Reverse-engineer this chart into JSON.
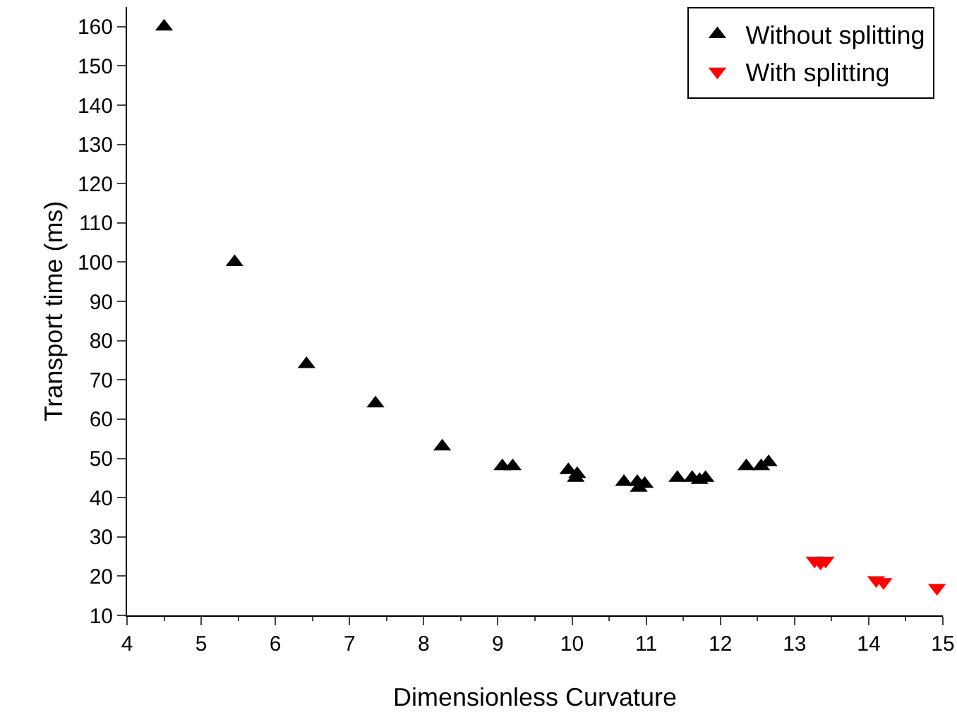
{
  "chart_data": {
    "type": "scatter",
    "xlabel": "Dimensionless Curvature",
    "ylabel": "Transport time (ms)",
    "xlim": [
      4,
      15
    ],
    "xticks": [
      4,
      5,
      6,
      7,
      8,
      9,
      10,
      11,
      12,
      13,
      14,
      15
    ],
    "ylim": [
      10,
      165
    ],
    "yticks": [
      10,
      20,
      30,
      40,
      50,
      60,
      70,
      80,
      90,
      100,
      110,
      120,
      130,
      140,
      150,
      160
    ],
    "grid": false,
    "legend": "top right",
    "series": [
      {
        "name": "Without splitting",
        "color": "#000000",
        "marker": "triangle",
        "x": [
          4.5,
          5.45,
          6.42,
          7.35,
          8.25,
          9.06,
          9.2,
          9.95,
          10.05,
          10.07,
          10.7,
          10.88,
          10.9,
          10.98,
          11.42,
          11.62,
          11.72,
          11.8,
          12.35,
          12.55,
          12.65
        ],
        "values": [
          160,
          100,
          74,
          64,
          53,
          48,
          48,
          47,
          45,
          46,
          44,
          44,
          42.5,
          43.5,
          45,
          45,
          44.5,
          45,
          48,
          48,
          49
        ]
      },
      {
        "name": "With splitting",
        "color": "#ff0000",
        "marker": "triangle-down",
        "x": [
          13.27,
          13.35,
          13.42,
          14.1,
          14.2,
          14.92
        ],
        "values": [
          24,
          23.5,
          24,
          19,
          18.5,
          17
        ]
      }
    ]
  }
}
